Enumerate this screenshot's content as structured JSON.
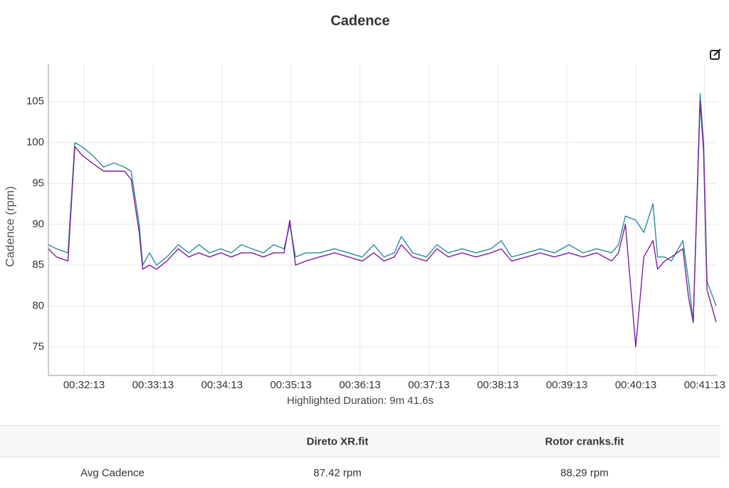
{
  "chart_data": {
    "type": "line",
    "title": "Cadence",
    "y_label": "Cadence (rpm)",
    "annotation": "Highlighted Duration: 9m 41.6s",
    "x": [
      1902,
      1909,
      1919,
      1925,
      1931,
      1940,
      1950,
      1959,
      1968,
      1974,
      1981,
      1984,
      1990,
      1996,
      2005,
      2015,
      2024,
      2033,
      2042,
      2052,
      2061,
      2070,
      2079,
      2089,
      2098,
      2107,
      2112,
      2117,
      2126,
      2138,
      2151,
      2163,
      2175,
      2185,
      2194,
      2203,
      2209,
      2219,
      2231,
      2240,
      2250,
      2262,
      2274,
      2287,
      2296,
      2305,
      2318,
      2330,
      2342,
      2355,
      2367,
      2379,
      2392,
      2398,
      2404,
      2413,
      2420,
      2428,
      2432,
      2438,
      2444,
      2454,
      2459,
      2463,
      2469,
      2472,
      2475,
      2483
    ],
    "series": [
      {
        "color": "#2a8c9c",
        "values": [
          87.5,
          87,
          86.5,
          100,
          99.5,
          98.5,
          97,
          97.5,
          97,
          96.5,
          90,
          85,
          86.5,
          85,
          86,
          87.5,
          86.5,
          87.5,
          86.5,
          87,
          86.5,
          87.5,
          87,
          86.5,
          87.5,
          87,
          90,
          86,
          86.5,
          86.5,
          87,
          86.5,
          86,
          87.5,
          86,
          86.5,
          88.5,
          86.5,
          86,
          87.5,
          86.5,
          87,
          86.5,
          87,
          88,
          86,
          86.5,
          87,
          86.5,
          87.5,
          86.5,
          87,
          86.5,
          87.5,
          91,
          90.5,
          89,
          92.5,
          86,
          86,
          85.5,
          88,
          83,
          78,
          106,
          100,
          83,
          80
        ]
      },
      {
        "color": "#7b1fa2",
        "values": [
          87,
          86,
          85.5,
          99.5,
          98.5,
          97.5,
          96.5,
          96.5,
          96.5,
          95.5,
          89,
          84.5,
          85,
          84.5,
          85.5,
          87,
          86,
          86.5,
          86,
          86.5,
          86,
          86.5,
          86.5,
          86,
          86.5,
          86.5,
          90.5,
          85,
          85.5,
          86,
          86.5,
          86,
          85.5,
          86.5,
          85.5,
          86,
          87.5,
          86,
          85.5,
          87,
          86,
          86.5,
          86,
          86.5,
          87,
          85.5,
          86,
          86.5,
          86,
          86.5,
          86,
          86.5,
          85.5,
          86.5,
          90,
          75,
          86,
          88,
          84.5,
          85.5,
          86,
          87,
          81,
          78,
          105,
          99,
          82,
          78
        ]
      }
    ],
    "xlim": [
      1902,
      2483.6
    ],
    "xticks": [
      {
        "value": 1933,
        "label": "00:32:13"
      },
      {
        "value": 1993,
        "label": "00:33:13"
      },
      {
        "value": 2053,
        "label": "00:34:13"
      },
      {
        "value": 2113,
        "label": "00:35:13"
      },
      {
        "value": 2173,
        "label": "00:36:13"
      },
      {
        "value": 2233,
        "label": "00:37:13"
      },
      {
        "value": 2293,
        "label": "00:38:13"
      },
      {
        "value": 2353,
        "label": "00:39:13"
      },
      {
        "value": 2413,
        "label": "00:40:13"
      },
      {
        "value": 2473,
        "label": "00:41:13"
      }
    ],
    "ylim": [
      71.5,
      109.6
    ],
    "yticks": [
      75,
      80,
      85,
      90,
      95,
      100,
      105
    ],
    "grid": true
  },
  "table": {
    "columns": [
      "Direto XR.fit",
      "Rotor cranks.fit"
    ],
    "rows": [
      [
        "Avg Cadence",
        "87.42 rpm",
        "88.29 rpm"
      ]
    ]
  }
}
